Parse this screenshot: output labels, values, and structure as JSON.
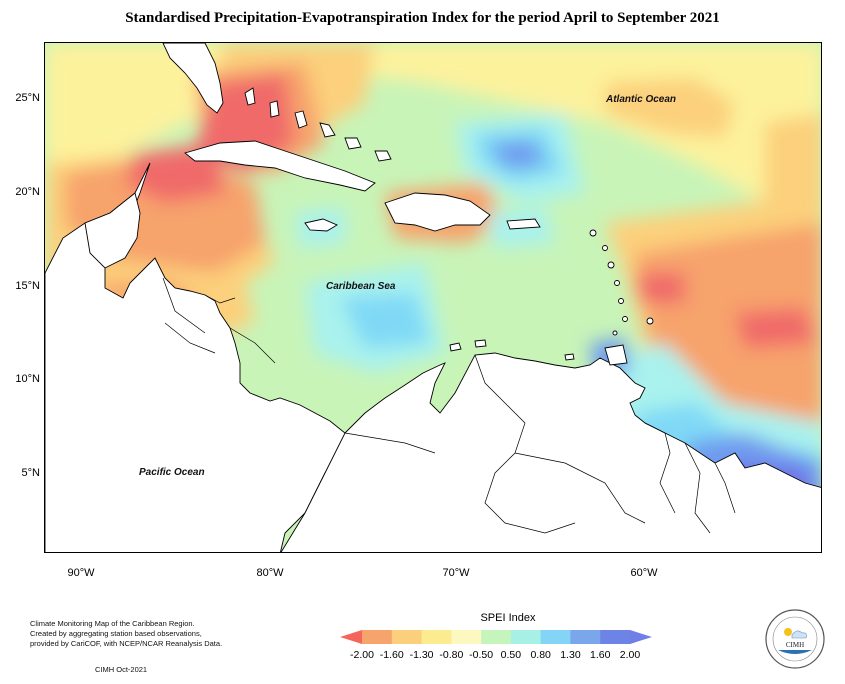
{
  "title": "Standardised Precipitation-Evapotranspiration Index for the period April to September 2021",
  "map": {
    "lat_labels": [
      "25°N",
      "20°N",
      "15°N",
      "10°N",
      "5°N"
    ],
    "lon_labels": [
      "90°W",
      "80°W",
      "70°W",
      "60°W"
    ],
    "lon_range": [
      -92,
      -50
    ],
    "lat_range": [
      1,
      28
    ],
    "ocean_labels": {
      "atlantic": "Atlantic Ocean",
      "caribbean": "Caribbean Sea",
      "pacific": "Pacific Ocean"
    },
    "colors": {
      "land": "#ffffff",
      "background": "#c8f4b8",
      "very_dry": "#f06a6a",
      "dry": "#f7a36c",
      "mod_dry": "#fcd07c",
      "slight_dry": "#fdf29c",
      "slight_wet": "#a9f2ee",
      "mod_wet": "#7fd9f6",
      "wet": "#6f9bef",
      "very_wet": "#7070e6"
    }
  },
  "legend": {
    "title": "SPEI Index",
    "ticks": [
      "-2.00",
      "-1.60",
      "-1.30",
      "-0.80",
      "-0.50",
      "0.50",
      "0.80",
      "1.30",
      "1.60",
      "2.00"
    ],
    "colors": [
      "#f4665b",
      "#f7a36c",
      "#fccf7c",
      "#fdeb90",
      "#fdf7c0",
      "#c6f4bd",
      "#a6f0e6",
      "#84d4f7",
      "#7aa6ec",
      "#6d84e6",
      "#6f7fe6"
    ]
  },
  "credits": {
    "line1": "Climate Monitoring Map of the Caribbean Region.",
    "line2": "Created by aggregating station based observations,",
    "line3": "provided by CariCOF, with NCEP/NCAR Reanalysis Data.",
    "date": "CIMH Oct-2021"
  },
  "logo": {
    "text": "CIMH"
  }
}
